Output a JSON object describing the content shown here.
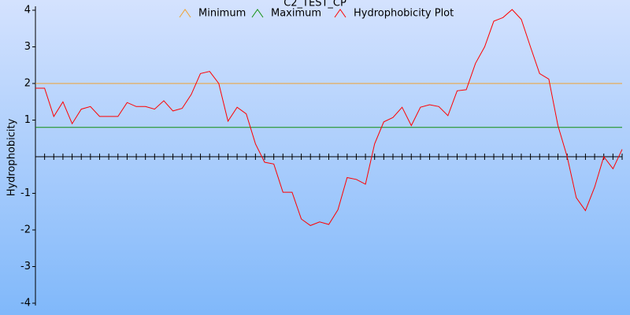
{
  "chart_data": {
    "type": "line",
    "title": "C2_TEST_CP",
    "y_label": "Hydrophobicity",
    "ylim": [
      -4,
      4
    ],
    "yticks": [
      4,
      3,
      2,
      1,
      -1,
      -2,
      -3,
      -4
    ],
    "series": [
      {
        "name": "Minimum",
        "color": "#f0a030",
        "values": [
          2
        ]
      },
      {
        "name": "Maximum",
        "color": "#109010",
        "values": [
          0.8
        ]
      },
      {
        "name": "Hydrophobicity Plot",
        "color": "#ff0000",
        "values": [
          1.87,
          1.87,
          1.1,
          1.5,
          0.9,
          1.3,
          1.37,
          1.1,
          1.1,
          1.1,
          1.48,
          1.37,
          1.37,
          1.3,
          1.53,
          1.25,
          1.32,
          1.7,
          2.27,
          2.33,
          2.0,
          0.97,
          1.35,
          1.17,
          0.35,
          -0.15,
          -0.2,
          -0.97,
          -0.97,
          -1.7,
          -1.88,
          -1.78,
          -1.85,
          -1.45,
          -0.57,
          -0.62,
          -0.75,
          0.35,
          0.95,
          1.07,
          1.35,
          0.85,
          1.35,
          1.42,
          1.37,
          1.12,
          1.8,
          1.83,
          2.55,
          3.0,
          3.7,
          3.8,
          4.02,
          3.75,
          3.0,
          2.27,
          2.12,
          0.85,
          0.0,
          -1.12,
          -1.47,
          -0.83,
          0.0,
          -0.33,
          0.2
        ]
      }
    ]
  }
}
